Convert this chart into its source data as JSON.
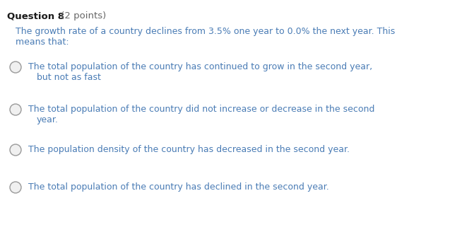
{
  "background_color": "#ffffff",
  "question_label": "Question 8",
  "question_points": " (2 points)",
  "question_label_color": "#1a1a1a",
  "question_points_color": "#666666",
  "prompt_color": "#4a7cb5",
  "prompt_line1": "The growth rate of a country declines from 3.5% one year to 0.0% the next year. This",
  "prompt_line2": "means that:",
  "options_line1": [
    "The total population of the country has continued to grow in the second year,",
    "The total population of the country did not increase or decrease in the second",
    "The population density of the country has decreased in the second year.",
    "The total population of the country has declined in the second year."
  ],
  "options_line2": [
    "but not as fast",
    "year.",
    "",
    ""
  ],
  "option_color": "#4a7cb5",
  "circle_edge_color": "#999999",
  "circle_face_color": "#f0f0f0",
  "fig_width": 6.54,
  "fig_height": 3.21,
  "dpi": 100
}
